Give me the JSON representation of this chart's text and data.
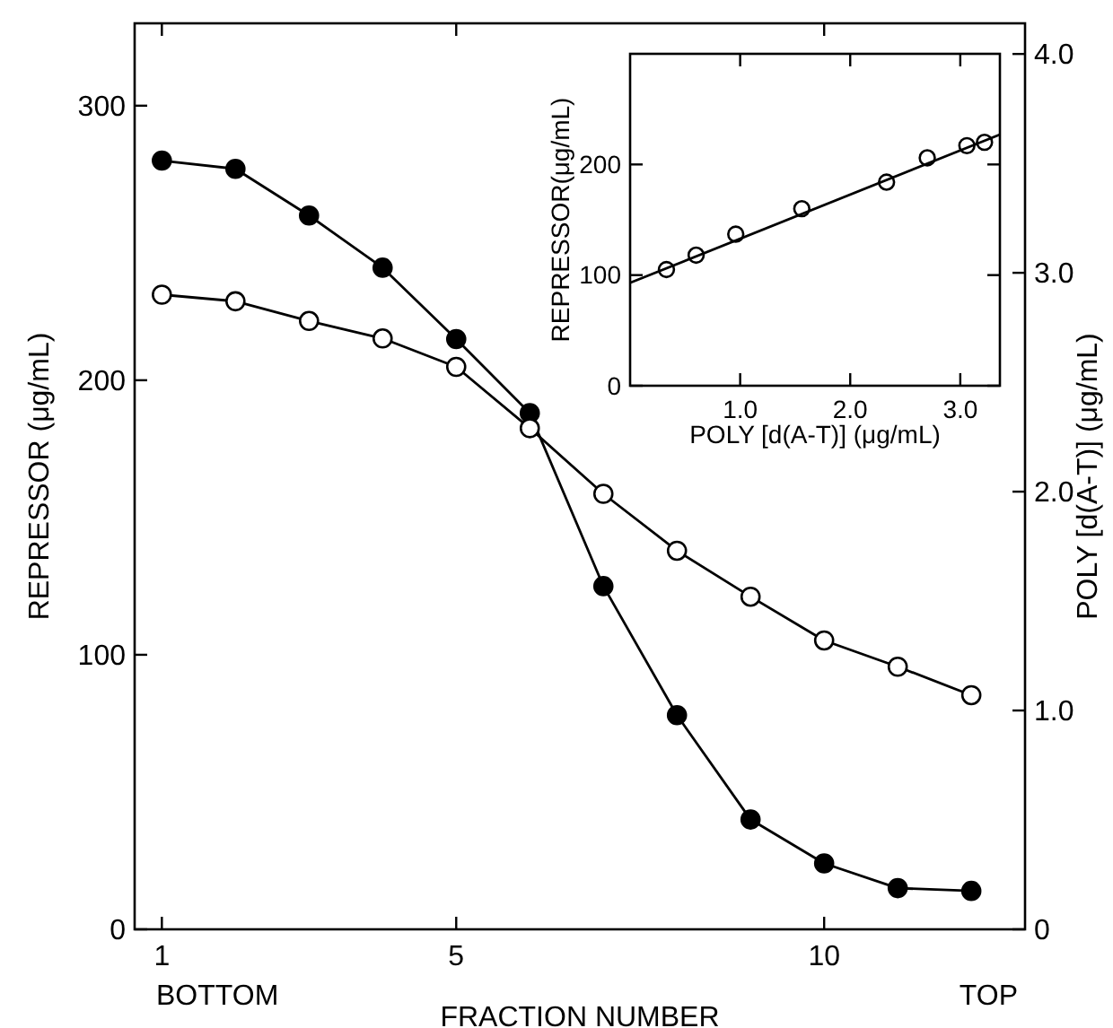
{
  "chart_data": [
    {
      "type": "line",
      "xlabel": "FRACTION NUMBER",
      "ylabel": "REPRESSOR (μg/mL)",
      "y2label": "POLY [d(A-T)] (μg/mL)",
      "x": [
        1,
        2,
        3,
        4,
        5,
        6,
        7,
        8,
        9,
        10,
        11,
        12
      ],
      "series": [
        {
          "color": "#000000",
          "marker": "circle",
          "values": [
            280,
            277,
            260,
            241,
            215,
            188,
            125,
            78,
            40,
            24,
            15,
            14
          ]
        },
        {
          "color": "#000000",
          "marker": "open_circle",
          "axis": "y2",
          "values": [
            2.9,
            2.87,
            2.78,
            2.7,
            2.57,
            2.29,
            1.99,
            1.73,
            1.52,
            1.32,
            1.2,
            1.07
          ]
        }
      ],
      "xlim": [
        0.63,
        12.73
      ],
      "xticks": [
        1,
        5,
        10
      ],
      "ylim": [
        0,
        330
      ],
      "yticks": [
        0,
        100,
        200,
        300
      ],
      "y2lim": [
        0,
        4.14
      ],
      "y2ticks": [
        0,
        {
          "value": 1,
          "label": "1.0"
        },
        {
          "value": 2,
          "label": "2.0"
        },
        {
          "value": 3,
          "label": "3.0"
        },
        {
          "value": 4,
          "label": "4.0"
        }
      ],
      "annotations": [
        "BOTTOM",
        "TOP"
      ]
    },
    {
      "type": "scatter",
      "xlabel": "POLY [d(A-T)] (μg/mL)",
      "ylabel": "REPRESSOR(μg/mL)",
      "series": [
        {
          "color": "#000000",
          "marker": "open_circle",
          "x": [
            0.33,
            0.6,
            0.96,
            1.56,
            2.33,
            2.7,
            3.06,
            3.22
          ],
          "values": [
            105,
            118,
            137,
            160,
            184,
            206,
            217,
            220
          ]
        },
        {
          "type": "line",
          "color": "#000000",
          "marker": "none",
          "x": [
            0,
            3.36
          ],
          "values": [
            93,
            227
          ]
        }
      ],
      "xlim": [
        0,
        3.36
      ],
      "xticks": [
        {
          "value": 1,
          "label": "1.0"
        },
        {
          "value": 2,
          "label": "2.0"
        },
        {
          "value": 3,
          "label": "3.0"
        }
      ],
      "ylim": [
        0,
        300
      ],
      "yticks": [
        0,
        100,
        200
      ]
    }
  ]
}
